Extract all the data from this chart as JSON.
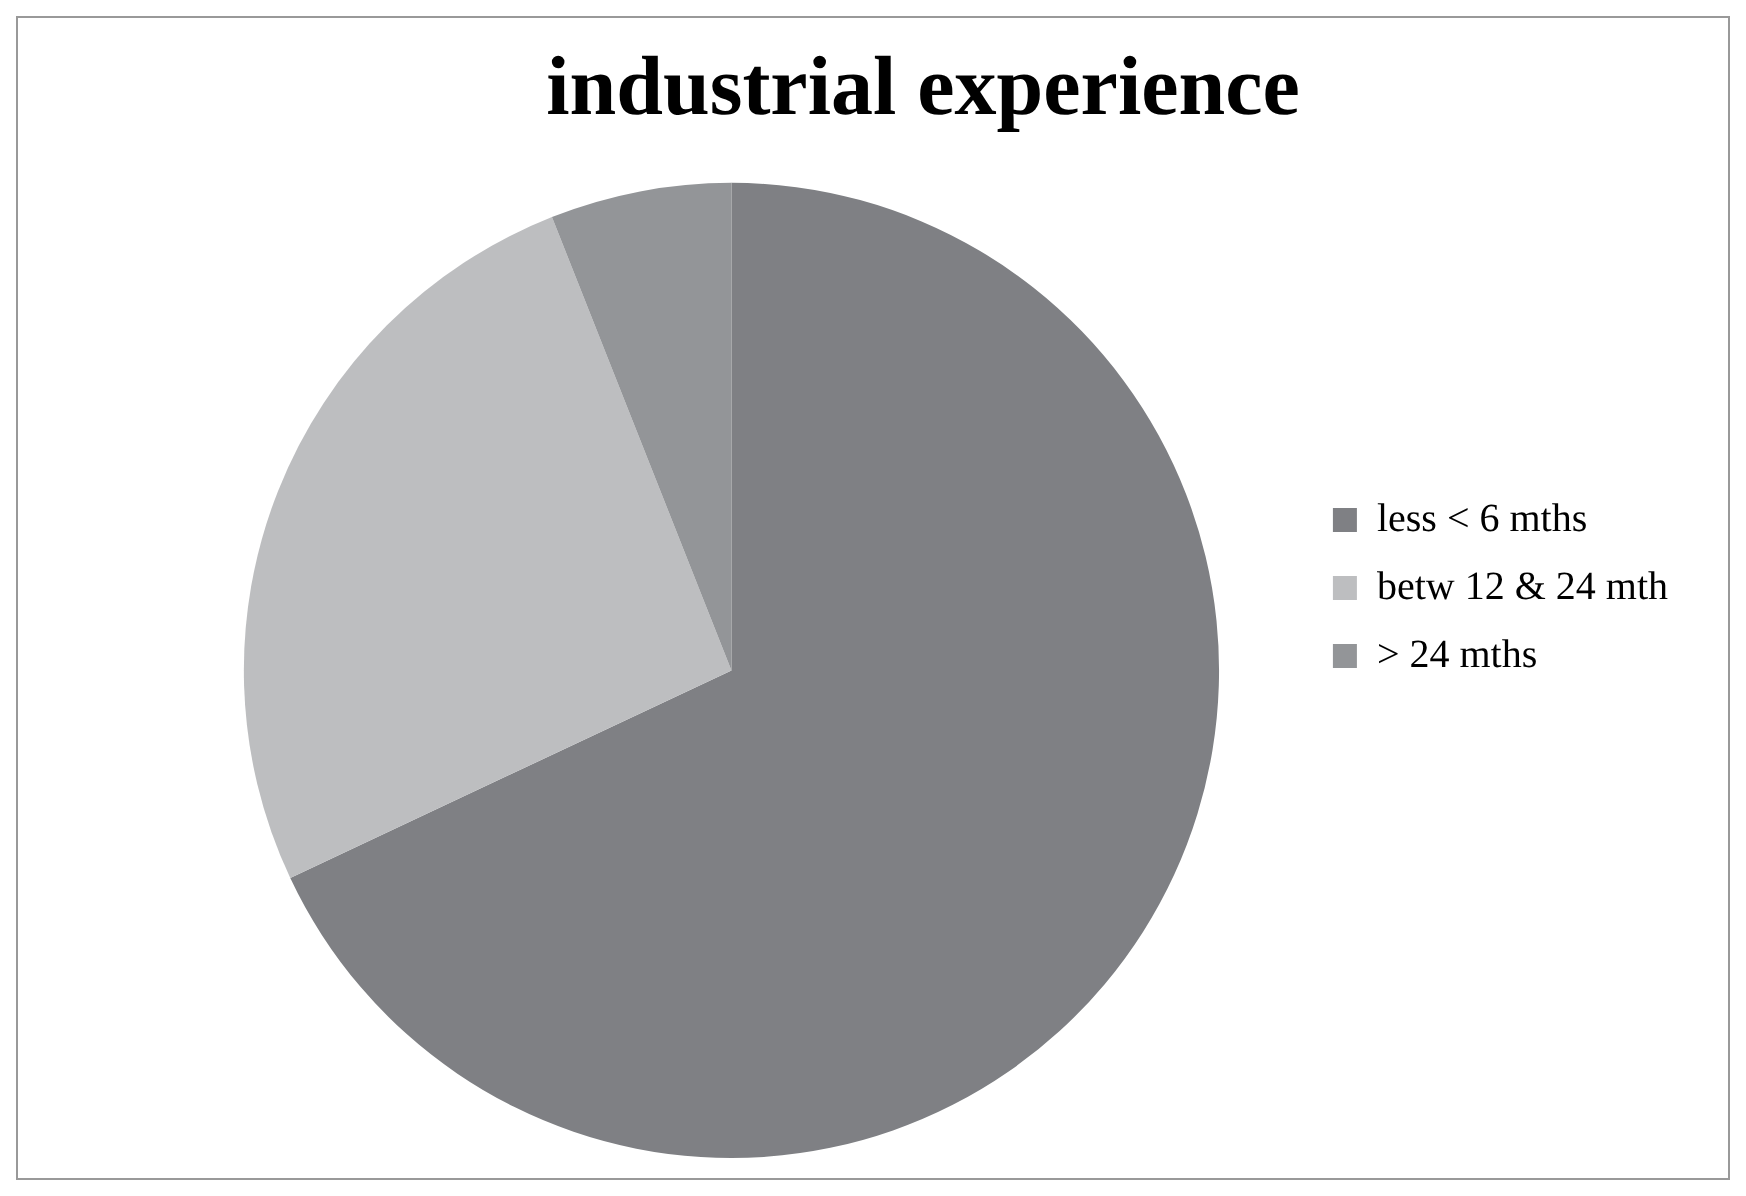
{
  "chart_data": {
    "type": "pie",
    "title": "industrial experience",
    "categories": [
      "less < 6 mths",
      "betw 12 & 24 mth",
      "> 24 mths"
    ],
    "values": [
      68,
      26,
      6
    ],
    "colors": [
      "#7f8084",
      "#bdbec0",
      "#939598"
    ],
    "legend": "right"
  }
}
